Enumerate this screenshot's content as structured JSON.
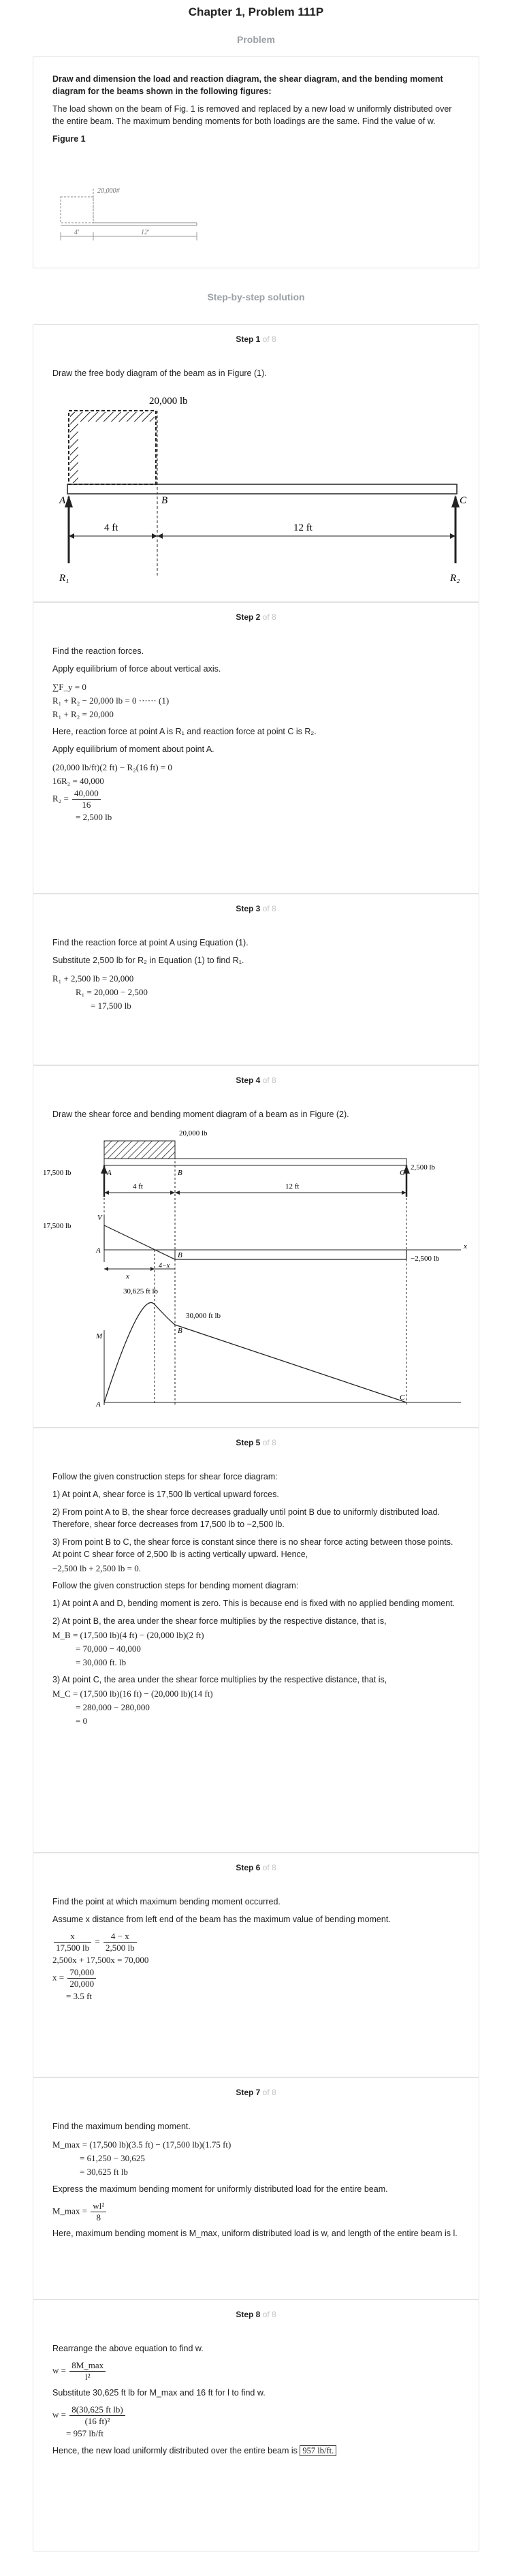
{
  "page": {
    "title": "Chapter 1, Problem 111P"
  },
  "problem": {
    "heading": "Problem",
    "question_bold": "Draw and dimension the load and reaction diagram, the shear diagram, and the bending moment diagram for the beams shown in the following figures:",
    "question_text": "The load shown on the beam of Fig. 1 is removed and replaced by a new load w uniformly distributed over the entire beam. The maximum bending moments for both loadings are the same. Find the value of w.",
    "figure_label": "Figure 1",
    "figure": {
      "load": "20,000#",
      "left_span": "4'",
      "right_span": "12'"
    }
  },
  "solution": {
    "heading": "Step-by-step solution",
    "of_text": "of 8"
  },
  "steps": [
    {
      "label": "Step 1",
      "text": "Draw the free body diagram of the beam as in Figure (1).",
      "figure": {
        "load": "20,000 lb",
        "pA": "A",
        "pB": "B",
        "pC": "C",
        "d1": "4 ft",
        "d2": "12 ft",
        "r1": "R₁",
        "r2": "R₂"
      }
    },
    {
      "label": "Step 2",
      "t1": "Find the reaction forces.",
      "t2": "Apply equilibrium of force about vertical axis.",
      "e1": "∑F_y = 0",
      "e2": "R₁ + R₂ − 20,000 lb = 0 ······ (1)",
      "e3": "R₁ + R₂ = 20,000",
      "t3": "Here, reaction force at point A is R₁ and reaction force at point C is R₂.",
      "t4": "Apply equilibrium of moment about point A.",
      "e4": "(20,000 lb/ft)(2 ft) − R₂(16 ft) = 0",
      "e5": "16R₂ = 40,000",
      "e6a": "R₂ =",
      "e6n": "40,000",
      "e6d": "16",
      "e7": "= 2,500 lb"
    },
    {
      "label": "Step 3",
      "t1": "Find the reaction force at point A using Equation (1).",
      "t2": "Substitute 2,500 lb for R₂ in Equation (1) to find R₁.",
      "e1": "R₁ + 2,500 lb = 20,000",
      "e2": "R₁ = 20,000 − 2,500",
      "e3": "= 17,500 lb"
    },
    {
      "label": "Step 4",
      "text": "Draw the shear force and bending moment diagram of a beam as in Figure (2).",
      "figure": {
        "load": "20,000 lb",
        "r1": "17,500 lb",
        "r2": "2,500 lb",
        "pA": "A",
        "pB": "B",
        "pC": "C",
        "d1": "4 ft",
        "d2": "12 ft",
        "v_axis": "V",
        "x_axis": "x",
        "v_top": "17,500 lb",
        "v_bottom": "−2,500 lb",
        "seg_x": "x",
        "seg_4x": "4−x",
        "m_axis": "M",
        "m_peak": "30,625 ft lb",
        "m_b": "30,000 ft lb"
      }
    },
    {
      "label": "Step 5",
      "t1": "Follow the given construction steps for shear force diagram:",
      "t2": "1) At point A, shear force is 17,500 lb vertical upward forces.",
      "t3": "2) From point A to B, the shear force decreases gradually until point B due to uniformly distributed load. Therefore, shear force decreases from 17,500 lb to −2,500 lb.",
      "t4": "3) From point B to C, the shear force is constant since there is no shear force acting between those points. At point C shear force of 2,500 lb is acting vertically upward. Hence,",
      "e1": "−2,500 lb + 2,500 lb = 0.",
      "t5": "Follow the given construction steps for bending moment diagram:",
      "t6": "1) At point A and D, bending moment is zero. This is because end is fixed with no applied bending moment.",
      "t7": "2) At point B, the area under the shear force multiplies by the respective distance, that is,",
      "e2": "M_B = (17,500 lb)(4 ft) − (20,000 lb)(2 ft)",
      "e3": "= 70,000 − 40,000",
      "e4": "= 30,000 ft. lb",
      "t8": "3) At point C, the area under the shear force multiplies by the respective distance, that is,",
      "e5": "M_C = (17,500 lb)(16 ft) − (20,000 lb)(14 ft)",
      "e6": "= 280,000 − 280,000",
      "e7": "= 0"
    },
    {
      "label": "Step 6",
      "t1": "Find the point at which maximum bending moment occurred.",
      "t2": "Assume x distance from left end of the beam has the maximum value of bending moment.",
      "f1n": "x",
      "f1d": "17,500 lb",
      "f2n": "4 − x",
      "f2d": "2,500 lb",
      "e1": "2,500x + 17,500x = 70,000",
      "e2a": "x =",
      "e2n": "70,000",
      "e2d": "20,000",
      "e3": "= 3.5 ft"
    },
    {
      "label": "Step 7",
      "t1": "Find the maximum bending moment.",
      "e1": "M_max = (17,500 lb)(3.5 ft) − (17,500 lb)(1.75 ft)",
      "e2": "= 61,250 − 30,625",
      "e3": "= 30,625 ft lb",
      "t2": "Express the maximum bending moment for uniformly distributed load for the entire beam.",
      "e4a": "M_max =",
      "e4n": "wl²",
      "e4d": "8",
      "t3": "Here, maximum bending moment is M_max, uniform distributed load is w, and length of the entire beam is l."
    },
    {
      "label": "Step 8",
      "t1": "Rearrange the above equation to find w.",
      "e1a": "w =",
      "e1n": "8M_max",
      "e1d": "l²",
      "t2": "Substitute 30,625 ft lb for M_max and 16 ft for l to find w.",
      "e2a": "w =",
      "e2n": "8(30,625 ft lb)",
      "e2d": "(16 ft)²",
      "e3": "= 957 lb/ft",
      "t3": "Hence, the new load uniformly distributed over the entire beam is",
      "answer": "957 lb/ft."
    }
  ]
}
